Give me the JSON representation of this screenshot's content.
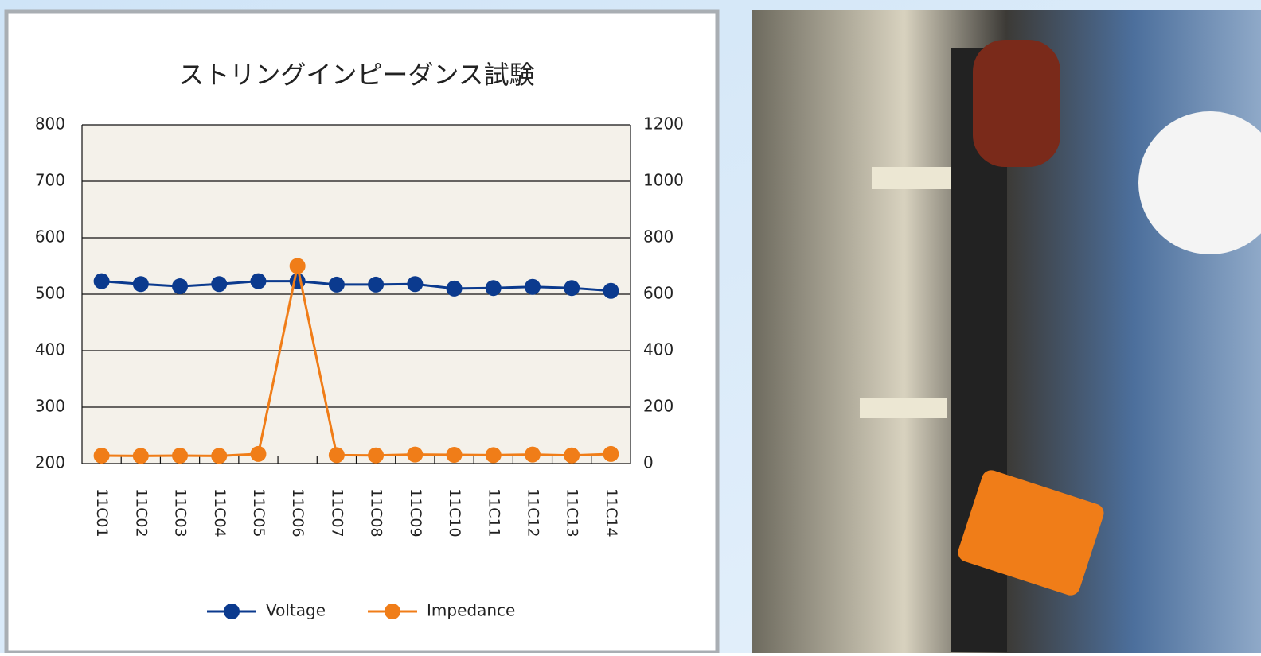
{
  "chart_data": {
    "type": "line",
    "title": "ストリングインピーダンス試験",
    "categories": [
      "11C01",
      "11C02",
      "11C03",
      "11C04",
      "11C05",
      "11C06",
      "11C07",
      "11C08",
      "11C09",
      "11C10",
      "11C11",
      "11C12",
      "11C13",
      "11C14"
    ],
    "series": [
      {
        "name": "Voltage",
        "color": "#0b3a8e",
        "values": [
          523,
          518,
          514,
          518,
          523,
          523,
          517,
          517,
          518,
          510,
          511,
          513,
          511,
          506
        ]
      },
      {
        "name": "Impedance",
        "color": "#f07d18",
        "axis": "y2",
        "values": [
          28,
          27,
          28,
          27,
          34,
          700,
          30,
          29,
          32,
          31,
          30,
          32,
          29,
          34
        ]
      }
    ],
    "ylim": [
      200,
      800
    ],
    "yticks": [
      200,
      300,
      400,
      500,
      600,
      700,
      800
    ],
    "y2lim": [
      0,
      1200
    ],
    "y2ticks": [
      0,
      200,
      400,
      600,
      800,
      1000,
      1200
    ],
    "grid": true,
    "legend": "bottom"
  }
}
